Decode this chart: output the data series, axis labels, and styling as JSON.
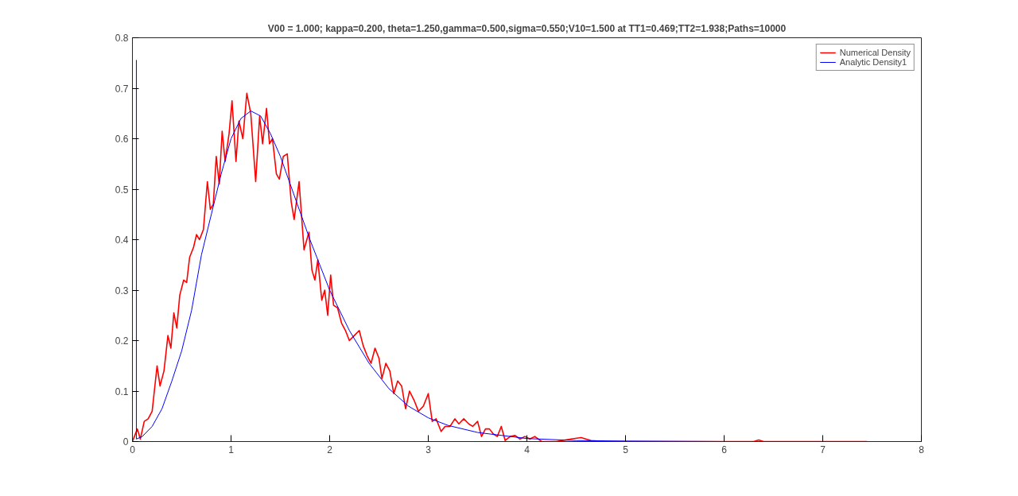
{
  "chart_data": {
    "type": "line",
    "title": "V00 = 1.000; kappa=0.200, theta=1.250,gamma=0.500,sigma=0.550;V10=1.500 at TT1=0.469;TT2=1.938;Paths=10000",
    "xlim": [
      0,
      8
    ],
    "ylim": [
      0,
      0.8
    ],
    "xticks": [
      0,
      1,
      2,
      3,
      4,
      5,
      6,
      7,
      8
    ],
    "yticks": [
      0,
      0.1,
      0.2,
      0.3,
      0.4,
      0.5,
      0.6,
      0.7,
      0.8
    ],
    "grid": false,
    "legend": "top right",
    "line_style": "solid",
    "marker": "none",
    "series": [
      {
        "name": "Numerical Density",
        "color": "#ff0000",
        "x": [
          0.0,
          0.05,
          0.08,
          0.12,
          0.16,
          0.2,
          0.25,
          0.28,
          0.32,
          0.36,
          0.39,
          0.42,
          0.45,
          0.48,
          0.52,
          0.55,
          0.58,
          0.62,
          0.65,
          0.68,
          0.72,
          0.76,
          0.79,
          0.82,
          0.85,
          0.88,
          0.91,
          0.94,
          0.98,
          1.01,
          1.05,
          1.08,
          1.12,
          1.16,
          1.2,
          1.25,
          1.29,
          1.32,
          1.36,
          1.39,
          1.42,
          1.46,
          1.49,
          1.53,
          1.57,
          1.61,
          1.64,
          1.69,
          1.74,
          1.79,
          1.82,
          1.85,
          1.88,
          1.92,
          1.95,
          1.98,
          2.01,
          2.04,
          2.08,
          2.12,
          2.16,
          2.2,
          2.25,
          2.3,
          2.34,
          2.38,
          2.42,
          2.46,
          2.5,
          2.53,
          2.57,
          2.61,
          2.65,
          2.69,
          2.73,
          2.77,
          2.81,
          2.86,
          2.9,
          2.95,
          3.0,
          3.04,
          3.08,
          3.13,
          3.17,
          3.22,
          3.27,
          3.31,
          3.36,
          3.41,
          3.45,
          3.5,
          3.54,
          3.58,
          3.62,
          3.66,
          3.7,
          3.74,
          3.78,
          3.83,
          3.88,
          3.93,
          3.98,
          4.03,
          4.08,
          4.15,
          4.3,
          4.45,
          4.55,
          4.65,
          4.8,
          6.3,
          6.35,
          6.4,
          7.45
        ],
        "values": [
          0.0,
          0.025,
          0.005,
          0.04,
          0.045,
          0.06,
          0.15,
          0.11,
          0.14,
          0.21,
          0.185,
          0.255,
          0.225,
          0.29,
          0.32,
          0.315,
          0.365,
          0.385,
          0.41,
          0.4,
          0.42,
          0.515,
          0.46,
          0.47,
          0.565,
          0.51,
          0.615,
          0.555,
          0.61,
          0.675,
          0.555,
          0.635,
          0.6,
          0.69,
          0.65,
          0.515,
          0.645,
          0.59,
          0.66,
          0.59,
          0.6,
          0.53,
          0.52,
          0.565,
          0.57,
          0.475,
          0.44,
          0.515,
          0.38,
          0.415,
          0.34,
          0.32,
          0.36,
          0.28,
          0.3,
          0.25,
          0.33,
          0.27,
          0.265,
          0.235,
          0.22,
          0.2,
          0.21,
          0.22,
          0.19,
          0.17,
          0.155,
          0.185,
          0.165,
          0.125,
          0.155,
          0.14,
          0.095,
          0.12,
          0.11,
          0.065,
          0.1,
          0.08,
          0.06,
          0.07,
          0.095,
          0.04,
          0.045,
          0.02,
          0.03,
          0.03,
          0.045,
          0.035,
          0.045,
          0.035,
          0.03,
          0.04,
          0.01,
          0.025,
          0.025,
          0.015,
          0.01,
          0.03,
          0.002,
          0.01,
          0.012,
          0.005,
          0.01,
          0.005,
          0.01,
          0.0,
          0.0,
          0.005,
          0.008,
          0.002,
          0.0,
          0.0,
          0.003,
          0.0,
          0.0
        ]
      },
      {
        "name": "Analytic Density1",
        "color": "#0000ff",
        "x": [
          0.04,
          0.04,
          0.1,
          0.2,
          0.3,
          0.4,
          0.5,
          0.6,
          0.7,
          0.8,
          0.9,
          1.0,
          1.1,
          1.2,
          1.3,
          1.4,
          1.5,
          1.6,
          1.7,
          1.8,
          1.9,
          2.0,
          2.2,
          2.4,
          2.6,
          2.8,
          3.0,
          3.2,
          3.5,
          4.0,
          4.5,
          5.0,
          6.0,
          7.45
        ],
        "values": [
          0.756,
          0.005,
          0.01,
          0.03,
          0.065,
          0.12,
          0.18,
          0.26,
          0.37,
          0.45,
          0.53,
          0.6,
          0.64,
          0.655,
          0.645,
          0.61,
          0.565,
          0.51,
          0.455,
          0.4,
          0.35,
          0.3,
          0.22,
          0.155,
          0.105,
          0.07,
          0.047,
          0.032,
          0.018,
          0.006,
          0.002,
          0.001,
          0.0,
          0.0
        ]
      }
    ]
  }
}
